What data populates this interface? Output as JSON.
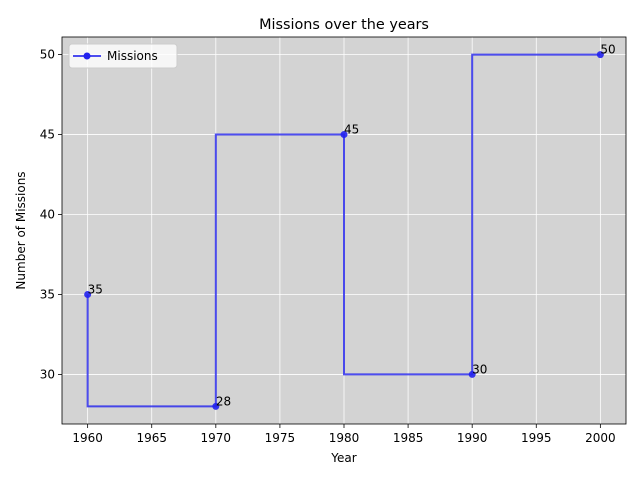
{
  "chart_data": {
    "type": "line",
    "title": "Missions over the years",
    "xlabel": "Year",
    "ylabel": "Number of Missions",
    "x": [
      1960,
      1970,
      1980,
      1990,
      2000
    ],
    "series": [
      {
        "name": "Missions",
        "values": [
          35,
          28,
          45,
          30,
          50
        ]
      }
    ],
    "step": "post",
    "xlim": [
      1958,
      2002
    ],
    "ylim": [
      26.9,
      51.1
    ],
    "xticks": [
      1960,
      1965,
      1970,
      1975,
      1980,
      1985,
      1990,
      1995,
      2000
    ],
    "yticks": [
      30,
      35,
      40,
      45,
      50
    ],
    "data_labels": true,
    "grid": true,
    "legend": "top-left",
    "colors": {
      "line": "#2222ee",
      "plot_background": "#d3d3d3",
      "grid": "#ffffff"
    }
  }
}
